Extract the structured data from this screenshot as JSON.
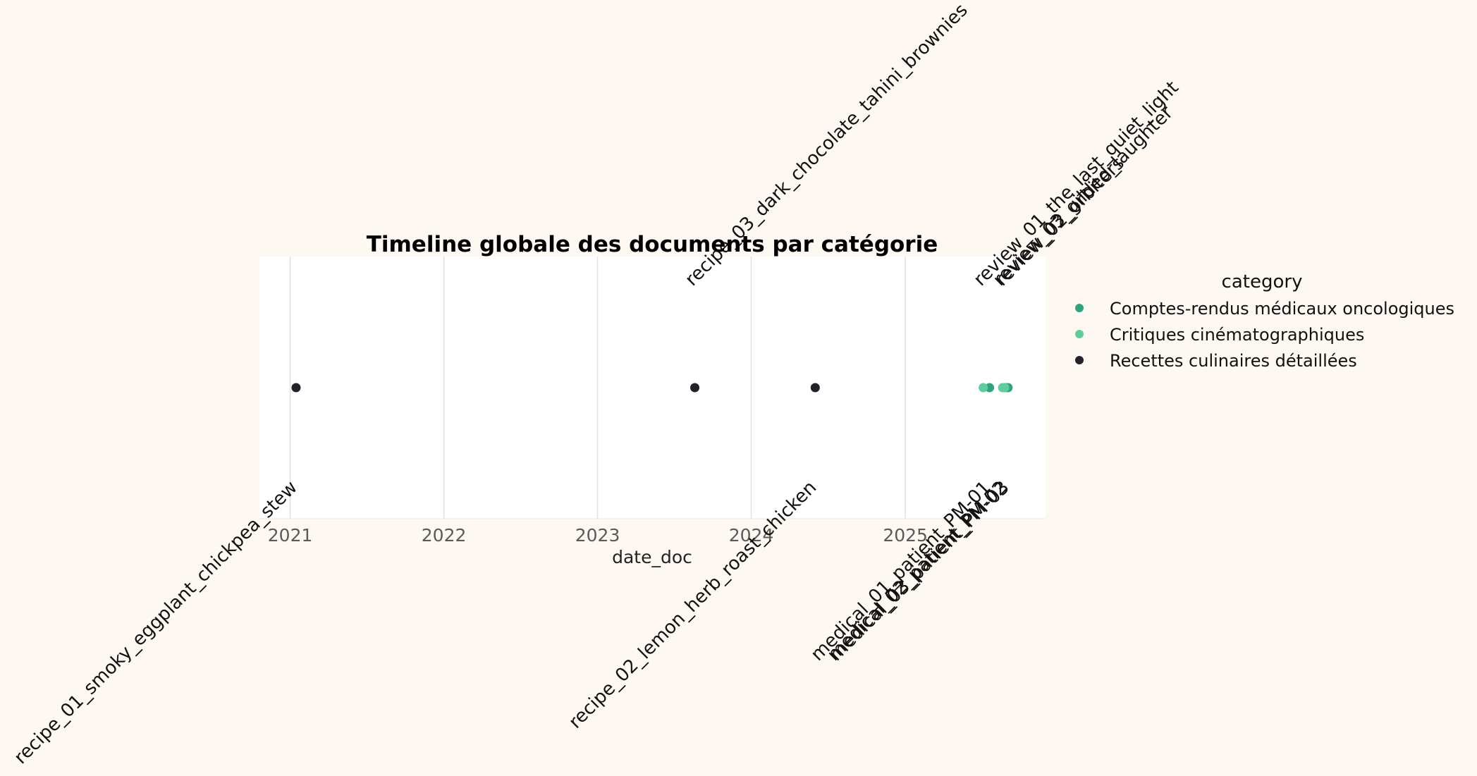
{
  "chart_data": {
    "type": "scatter",
    "title": "Timeline globale des documents par catégorie",
    "xlabel": "date_doc",
    "ylabel": "",
    "x_axis_type": "date",
    "xlim": [
      "2020-10-20",
      "2025-11-30"
    ],
    "x_ticks": [
      "2021",
      "2022",
      "2023",
      "2024",
      "2025"
    ],
    "y_axis_visible": false,
    "grid": "vertical",
    "legend": {
      "title": "category",
      "placement": "outside-right"
    },
    "series": [
      {
        "name": "Comptes-rendus médicaux oncologiques",
        "color": "#2ca57d",
        "points": [
          {
            "date": "2025-07-20",
            "label": "medical_01_patient_PM-01"
          },
          {
            "date": "2025-08-28",
            "label": "medical_02_patient_PM-02"
          },
          {
            "date": "2025-09-02",
            "label": "medical_03_patient_PM-03"
          }
        ]
      },
      {
        "name": "Critiques cinématographiques",
        "color": "#5fcc9c",
        "points": [
          {
            "date": "2025-07-05",
            "label": "review_01_the_last_quiet_light"
          },
          {
            "date": "2025-08-20",
            "label": "review_03_gilded_laughter"
          },
          {
            "date": "2025-08-25",
            "label": "review_02_orbiters"
          }
        ]
      },
      {
        "name": "Recettes culinaires détaillées",
        "color": "#222228",
        "points": [
          {
            "date": "2021-01-15",
            "label": "recipe_01_smoky_eggplant_chickpea_stew"
          },
          {
            "date": "2023-08-20",
            "label": "recipe_03_dark_chocolate_tahini_brownies"
          },
          {
            "date": "2024-06-01",
            "label": "recipe_02_lemon_herb_roast_chicken"
          }
        ]
      }
    ],
    "annotations": [
      {
        "label": "recipe_01_smoky_eggplant_chickpea_stew",
        "position": "below"
      },
      {
        "label": "recipe_03_dark_chocolate_tahini_brownies",
        "position": "above"
      },
      {
        "label": "recipe_02_lemon_herb_roast_chicken",
        "position": "below"
      },
      {
        "label": "review_01_the_last_quiet_light",
        "position": "above"
      },
      {
        "label": "review_03_gilded_laughter",
        "position": "above"
      },
      {
        "label": "review_02_orbiters",
        "position": "above"
      },
      {
        "label": "medical_01_patient_PM-01",
        "position": "below"
      },
      {
        "label": "medical_02_patient_PM-02",
        "position": "below"
      },
      {
        "label": "medical_03_patient_PM-03",
        "position": "below"
      }
    ]
  }
}
